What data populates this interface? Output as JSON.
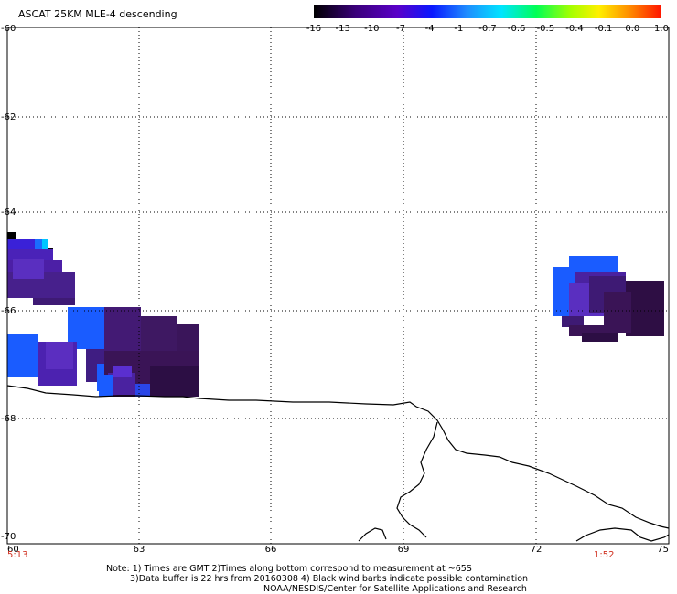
{
  "title": "ASCAT 25KM MLE-4 descending",
  "colorbar": {
    "ticks": [
      "-16",
      "-13",
      "-10",
      "-7",
      "-4",
      "-1",
      "-0.7",
      "-0.6",
      "-0.5",
      "-0.4",
      "-0.1",
      "0.0",
      "1.0"
    ]
  },
  "map": {
    "lon_ticks": [
      "60",
      "63",
      "66",
      "69",
      "72",
      "75"
    ],
    "lat_ticks": [
      "-60",
      "-62",
      "-64",
      "-66",
      "-68",
      "-70"
    ]
  },
  "times": {
    "left": "5:13",
    "right": "1:52"
  },
  "footer": {
    "line1": "Note: 1) Times are GMT 2)Times along bottom correspond to measurement at ~65S",
    "line2": "3)Data buffer is 22 hrs from 20160308 4) Black wind barbs indicate possible contamination",
    "line3": "NOAA/NESDIS/Center for Satellite Applications and Research"
  }
}
